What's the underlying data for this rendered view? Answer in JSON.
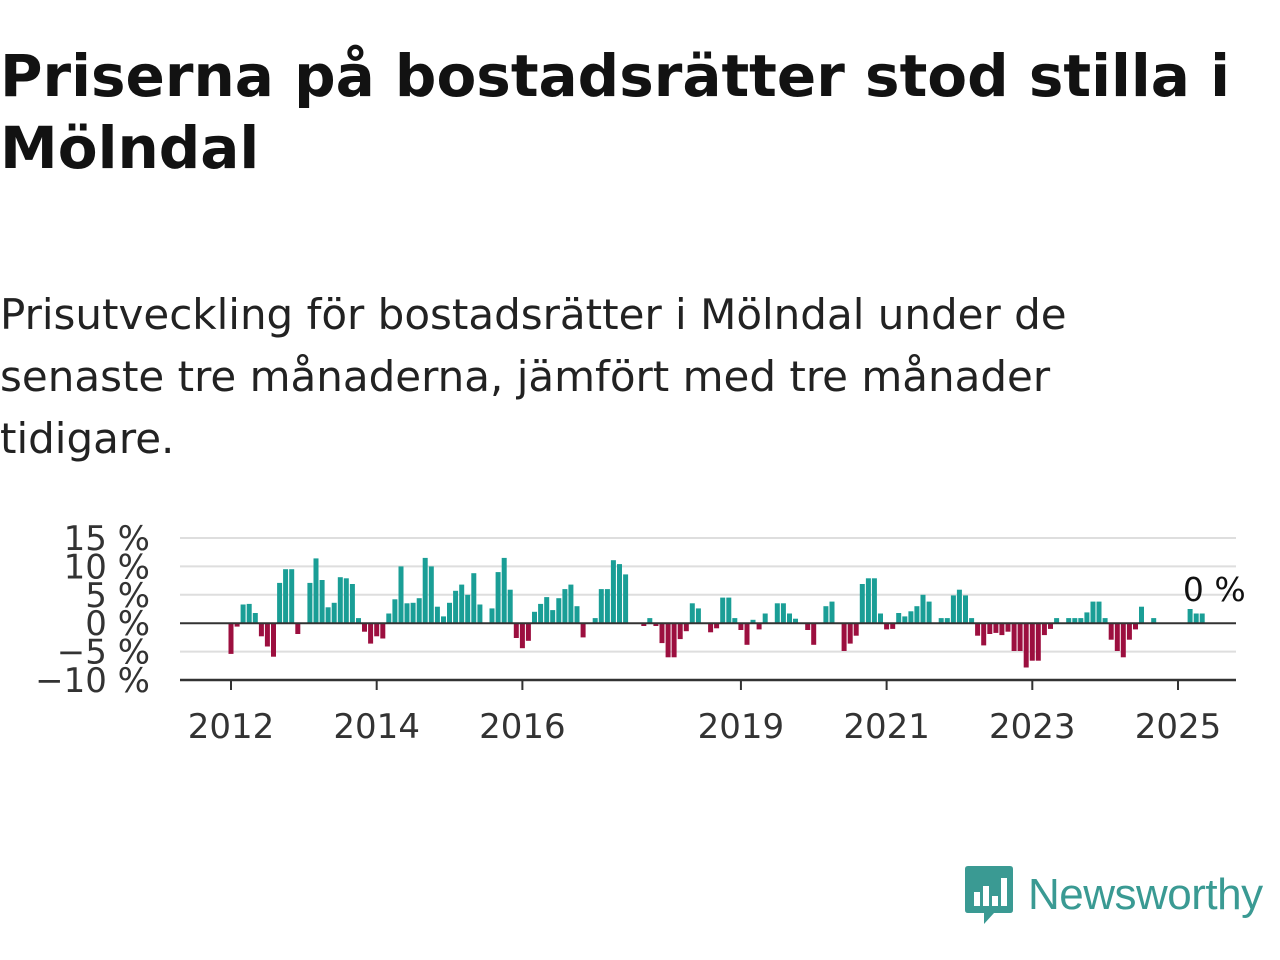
{
  "title": "Priserna på bostadsrätter stod stilla i Mölndal",
  "subtitle": "Prisutveckling för bostadsrätter i Mölndal under de senaste tre månaderna, jämfört med tre månader tidigare.",
  "brand": {
    "name": "Newsworthy",
    "color": "#3a9a93",
    "logo_icon": "bar-chart-speech-bubble-icon"
  },
  "colors": {
    "positive": "#1a9e96",
    "negative": "#9c0f3f",
    "grid": "#dedede",
    "axis": "#333333"
  },
  "chart_data": {
    "type": "bar",
    "title": "",
    "xlabel": "",
    "ylabel": "",
    "ylim": [
      -10,
      15
    ],
    "yticks": [
      15,
      10,
      5,
      0,
      -5,
      -10
    ],
    "ytick_labels": [
      "15 %",
      "10 %",
      "5 %",
      "0 %",
      "−5 %",
      "−10 %"
    ],
    "xticks": [
      2012,
      2014,
      2016,
      2019,
      2021,
      2023,
      2025
    ],
    "xtick_labels": [
      "2012",
      "2014",
      "2016",
      "2019",
      "2021",
      "2023",
      "2025"
    ],
    "grid": true,
    "last_value_label": "0 %",
    "x_start": 2012.0,
    "x_step": 0.08333,
    "values": [
      -5.4,
      -0.6,
      3.3,
      3.4,
      1.8,
      -2.3,
      -4.1,
      -5.9,
      7.1,
      9.5,
      9.5,
      -1.9,
      0,
      7.1,
      11.4,
      7.6,
      2.8,
      3.6,
      8.1,
      7.9,
      6.9,
      0.9,
      -1.5,
      -3.6,
      -2.3,
      -2.7,
      1.7,
      4.2,
      10.0,
      3.5,
      3.6,
      4.4,
      11.5,
      10.0,
      2.9,
      1.2,
      3.6,
      5.7,
      6.8,
      5.0,
      8.8,
      3.3,
      0,
      2.6,
      9.0,
      11.5,
      5.9,
      -2.6,
      -4.4,
      -3.1,
      2.0,
      3.4,
      4.6,
      2.3,
      4.4,
      6.0,
      6.8,
      3.0,
      -2.5,
      0,
      0.9,
      6.0,
      6.0,
      11.1,
      10.4,
      8.6,
      0,
      0,
      -0.5,
      0.9,
      -0.5,
      -3.5,
      -6.0,
      -6.0,
      -2.8,
      -1.4,
      3.5,
      2.6,
      0,
      -1.6,
      -0.9,
      4.5,
      4.5,
      0.9,
      -1.2,
      -3.8,
      0.6,
      -1.1,
      1.7,
      0,
      3.5,
      3.5,
      1.7,
      0.8,
      0,
      -1.2,
      -3.8,
      0,
      3.0,
      3.8,
      0,
      -4.9,
      -3.6,
      -2.2,
      6.9,
      7.9,
      7.9,
      1.7,
      -1.1,
      -1.0,
      1.8,
      1.2,
      2.1,
      3.0,
      5.0,
      3.8,
      0,
      0.9,
      0.9,
      4.9,
      5.9,
      4.9,
      0.9,
      -2.2,
      -3.9,
      -1.9,
      -1.7,
      -2.1,
      -1.5,
      -4.9,
      -4.9,
      -7.8,
      -6.6,
      -6.6,
      -2.1,
      -1.0,
      0.9,
      0,
      0.9,
      0.9,
      0.9,
      1.9,
      3.8,
      3.8,
      0.9,
      -2.9,
      -4.9,
      -6.0,
      -2.9,
      -1.1,
      2.9,
      0,
      0.9,
      0,
      0,
      0,
      0,
      0,
      2.5,
      1.7,
      1.7,
      0
    ]
  }
}
